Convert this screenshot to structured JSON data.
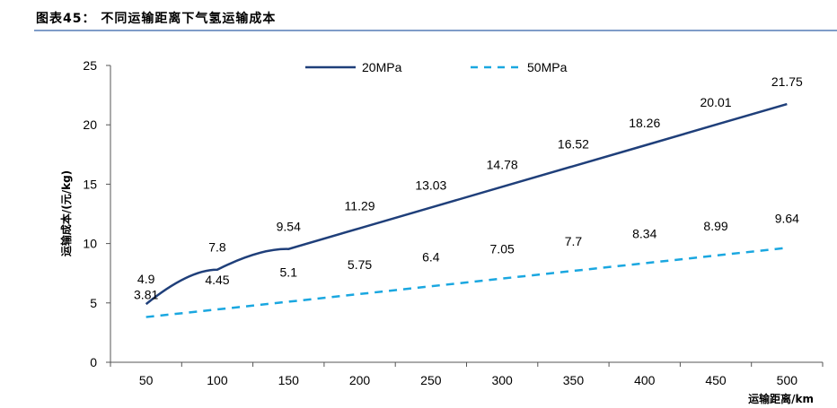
{
  "header": {
    "figure_title": "图表45：  不同运输距离下气氢运输成本"
  },
  "chart_data": {
    "type": "line",
    "title": "不同运输距离下气氢运输成本",
    "xlabel": "运输距离/km",
    "ylabel": "运输成本/(元/kg)",
    "categories": [
      50,
      100,
      150,
      200,
      250,
      300,
      350,
      400,
      450,
      500
    ],
    "ylim": [
      0,
      25
    ],
    "yticks": [
      0,
      5,
      10,
      15,
      20,
      25
    ],
    "grid": false,
    "legend_position": "top",
    "series": [
      {
        "name": "20MPa",
        "style": "solid",
        "color": "#1f3f7a",
        "values": [
          4.9,
          7.8,
          9.54,
          11.29,
          13.03,
          14.78,
          16.52,
          18.26,
          20.01,
          21.75
        ],
        "labels": [
          "4.9",
          "7.8",
          "9.54",
          "11.29",
          "13.03",
          "14.78",
          "16.52",
          "18.26",
          "20.01",
          "21.75"
        ]
      },
      {
        "name": "50MPa",
        "style": "dashed",
        "color": "#1aa7e0",
        "values": [
          3.81,
          4.45,
          5.1,
          5.75,
          6.4,
          7.05,
          7.7,
          8.34,
          8.99,
          9.64
        ],
        "labels": [
          "3.81",
          "4.45",
          "5.1",
          "5.75",
          "6.4",
          "7.05",
          "7.7",
          "8.34",
          "8.99",
          "9.64"
        ]
      }
    ]
  }
}
